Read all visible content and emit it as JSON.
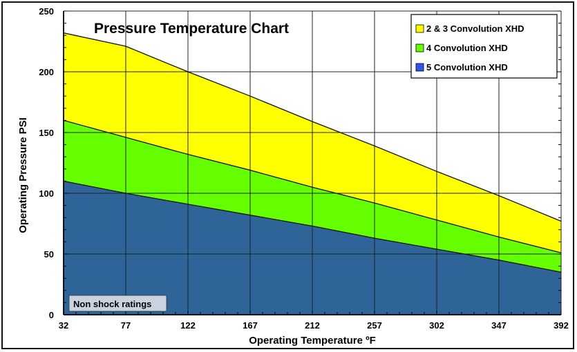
{
  "chart_data": {
    "type": "area",
    "title": "Pressure Temperature Chart",
    "xlabel": "Operating Temperature ºF",
    "ylabel": "Operating Pressure PSI",
    "x": [
      32,
      77,
      122,
      167,
      212,
      257,
      302,
      347,
      392
    ],
    "xticks": [
      "32",
      "77",
      "122",
      "167",
      "212",
      "257",
      "302",
      "347",
      "392"
    ],
    "yticks": [
      "0",
      "50",
      "100",
      "150",
      "200",
      "250"
    ],
    "xlim": [
      32,
      392
    ],
    "ylim": [
      0,
      250
    ],
    "grid": true,
    "legend_position": "top-right",
    "annotation": "Non shock ratings",
    "series": [
      {
        "name": "2 & 3 Convolution XHD",
        "color": "#ffff00",
        "values": [
          232,
          221,
          200,
          180,
          159,
          139,
          118,
          98,
          77
        ]
      },
      {
        "name": "4 Convolution XHD",
        "color": "#66ff00",
        "values": [
          160,
          146,
          132,
          119,
          105,
          92,
          78,
          64,
          51
        ]
      },
      {
        "name": "5 Convolution XHD",
        "color": "#2e6498",
        "values": [
          110,
          100,
          91,
          82,
          73,
          63,
          54,
          45,
          35
        ]
      }
    ]
  }
}
